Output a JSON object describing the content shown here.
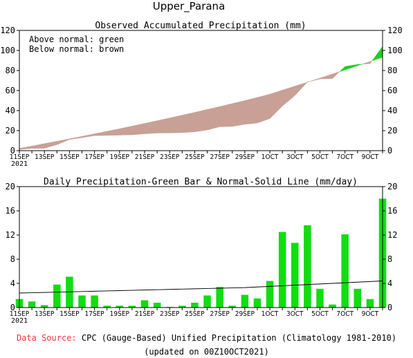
{
  "page": {
    "title": "Upper_Parana",
    "source_label": "Data Source:",
    "source_text": "CPC (Gauge-Based) Unified Precipitation (Climatology 1981-2010)",
    "updated_text": "(updated on 00Z10OCT2021)"
  },
  "chart_data": [
    {
      "type": "area",
      "title": "Observed Accumulated Precipitation (mm)",
      "legend_lines": [
        "Above normal: green",
        "Below normal: brown"
      ],
      "ylim": [
        0,
        120
      ],
      "yticks": [
        0,
        20,
        40,
        60,
        80,
        100,
        120
      ],
      "x_tick_labels": [
        "11SEP",
        "13SEP",
        "15SEP",
        "17SEP",
        "19SEP",
        "21SEP",
        "23SEP",
        "25SEP",
        "27SEP",
        "29SEP",
        "1OCT",
        "3OCT",
        "5OCT",
        "7OCT",
        "9OCT"
      ],
      "x_year_label": "2021",
      "colors": {
        "below_normal": "#c8a096",
        "above_normal": "#22cc22",
        "line": "#000000"
      },
      "series": [
        {
          "name": "Observed",
          "values": [
            1.2,
            2.2,
            2.4,
            6.0,
            11.1,
            13.0,
            15.0,
            15.2,
            15.5,
            15.8,
            16.8,
            17.6,
            17.7,
            18.0,
            18.8,
            20.6,
            23.9,
            24.2,
            26.3,
            27.6,
            32.0,
            44.5,
            55.0,
            68.5,
            71.5,
            72.0,
            84.0,
            86.0,
            86.8,
            104.0
          ]
        },
        {
          "name": "Normal",
          "values": [
            2.3,
            4.6,
            7.0,
            9.4,
            11.8,
            14.3,
            16.8,
            19.3,
            21.9,
            24.5,
            27.2,
            29.9,
            32.6,
            35.4,
            38.2,
            41.1,
            44.0,
            47.0,
            50.0,
            53.1,
            56.4,
            60.4,
            64.4,
            68.4,
            72.4,
            76.5,
            80.6,
            84.8,
            89.0,
            93.2
          ]
        }
      ]
    },
    {
      "type": "bar",
      "title": "Daily Precipitation-Green Bar & Normal-Solid Line (mm/day)",
      "ylim": [
        0,
        20
      ],
      "yticks": [
        0,
        4,
        8,
        12,
        16,
        20
      ],
      "x_tick_labels": [
        "11SEP",
        "13SEP",
        "15SEP",
        "17SEP",
        "19SEP",
        "21SEP",
        "23SEP",
        "25SEP",
        "27SEP",
        "29SEP",
        "1OCT",
        "3OCT",
        "5OCT",
        "7OCT",
        "9OCT"
      ],
      "x_year_label": "2021",
      "colors": {
        "bar": "#11dd11",
        "line": "#000000"
      },
      "series": [
        {
          "name": "Daily Precipitation",
          "values": [
            1.4,
            1.0,
            0.4,
            3.8,
            5.1,
            2.0,
            2.0,
            0.3,
            0.3,
            0.3,
            1.2,
            0.8,
            0.1,
            0.3,
            0.8,
            2.0,
            3.4,
            0.3,
            2.1,
            1.5,
            4.4,
            12.5,
            10.7,
            13.6,
            3.1,
            0.5,
            12.1,
            3.1,
            1.4,
            18.0
          ]
        },
        {
          "name": "Normal",
          "values": [
            2.4,
            2.45,
            2.5,
            2.55,
            2.6,
            2.65,
            2.7,
            2.75,
            2.8,
            2.85,
            2.9,
            2.95,
            3.0,
            3.05,
            3.1,
            3.15,
            3.2,
            3.25,
            3.3,
            3.4,
            3.5,
            3.6,
            3.7,
            3.8,
            3.9,
            4.0,
            4.1,
            4.2,
            4.3,
            4.4
          ]
        }
      ]
    }
  ]
}
